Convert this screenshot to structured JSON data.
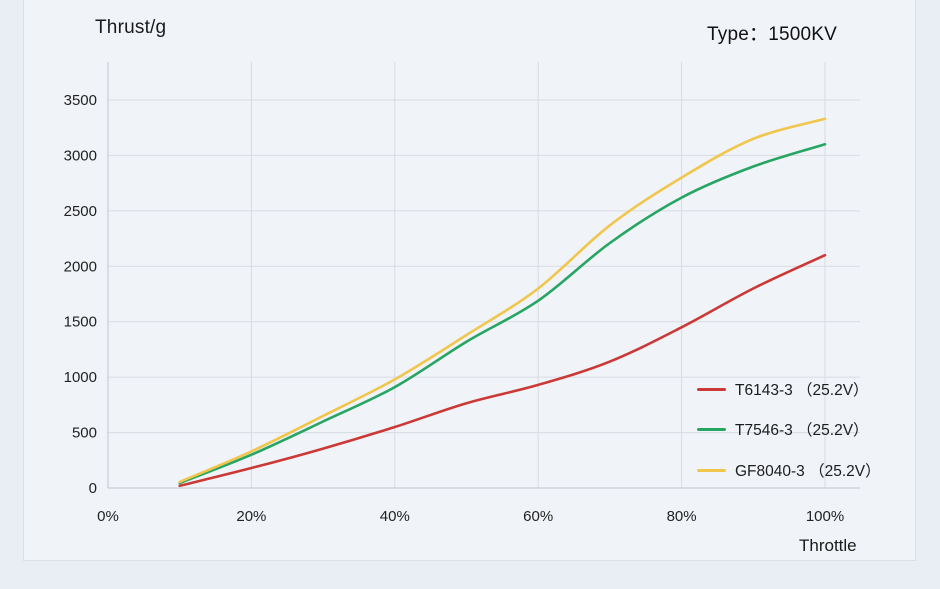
{
  "page": {
    "background": "#e9edf4",
    "card_background": "#f0f3f8",
    "card_border": "#d9dde4"
  },
  "header": {
    "y_axis_title": "Thrust/g",
    "type_label": "Type：1500KV"
  },
  "footer": {
    "x_axis_title": "Throttle"
  },
  "colors": {
    "gridline": "#d8dce2",
    "axis": "#c2c6ce",
    "tick_text": "#222222",
    "series_red": "#cb3936",
    "series_green": "#27a562",
    "series_yellow": "#f0c64d"
  },
  "chart_data": {
    "type": "line",
    "title": "",
    "xlabel": "Throttle",
    "ylabel": "Thrust/g",
    "x_unit": "percent throttle",
    "y_unit": "g",
    "xlim": [
      0,
      100
    ],
    "ylim": [
      0,
      3500
    ],
    "grid": true,
    "legend_position": "inside bottom-right",
    "x_ticks": [
      "0%",
      "20%",
      "40%",
      "60%",
      "80%",
      "100%"
    ],
    "x_tick_values": [
      0,
      20,
      40,
      60,
      80,
      100
    ],
    "y_ticks": [
      "0",
      "500",
      "1000",
      "1500",
      "2000",
      "2500",
      "3000",
      "3500"
    ],
    "y_tick_values": [
      0,
      500,
      1000,
      1500,
      2000,
      2500,
      3000,
      3500
    ],
    "x": [
      10,
      20,
      30,
      40,
      50,
      60,
      70,
      80,
      90,
      100
    ],
    "series": [
      {
        "name": "T6143-3 （25.2V）",
        "color": "#cb3936",
        "values": [
          20,
          180,
          355,
          550,
          765,
          930,
          1140,
          1450,
          1800,
          2100
        ]
      },
      {
        "name": "T7546-3 （25.2V）",
        "color": "#27a562",
        "values": [
          45,
          300,
          600,
          910,
          1320,
          1690,
          2210,
          2620,
          2900,
          3100
        ]
      },
      {
        "name": "GF8040-3 （25.2V）",
        "color": "#f0c64d",
        "values": [
          55,
          330,
          650,
          980,
          1380,
          1800,
          2370,
          2800,
          3150,
          3330
        ]
      }
    ]
  }
}
